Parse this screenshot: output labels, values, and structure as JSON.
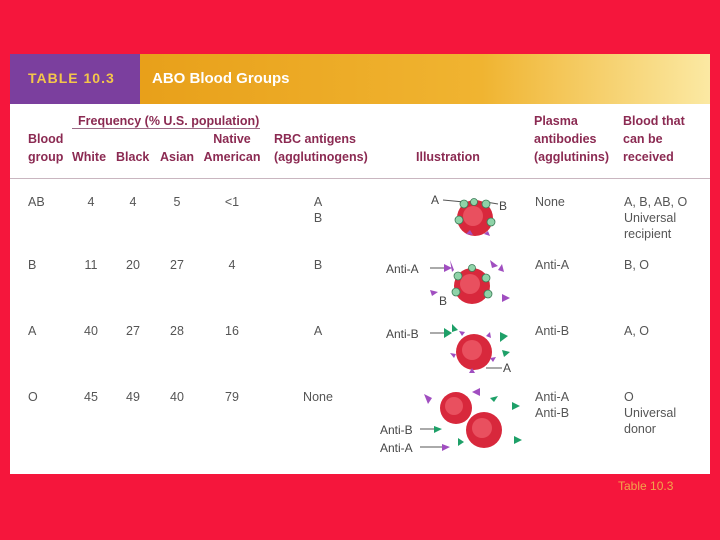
{
  "table": {
    "label": "TABLE 10.3",
    "title": "ABO Blood Groups",
    "headers": {
      "blood_group": [
        "Blood",
        "group"
      ],
      "frequency": "Frequency (% U.S. population)",
      "white": "White",
      "black": "Black",
      "asian": "Asian",
      "native_american": [
        "Native",
        "American"
      ],
      "rbc_antigens": [
        "RBC antigens",
        "(agglutinogens)"
      ],
      "illustration": "Illustration",
      "plasma_antibodies": [
        "Plasma",
        "antibodies",
        "(agglutinins)"
      ],
      "blood_received": [
        "Blood that",
        "can be",
        "received"
      ]
    },
    "rows": [
      {
        "group": "AB",
        "white": "4",
        "black": "4",
        "asian": "5",
        "native": "<1",
        "antigens": [
          "A",
          "B"
        ],
        "antibodies": [
          "None"
        ],
        "received": [
          "A, B, AB, O",
          "Universal",
          "recipient"
        ],
        "illustration_labels": {
          "a": "A",
          "b": "B"
        }
      },
      {
        "group": "B",
        "white": "11",
        "black": "20",
        "asian": "27",
        "native": "4",
        "antigens": [
          "B"
        ],
        "antibodies": [
          "Anti-A"
        ],
        "received": [
          "B, O"
        ],
        "illustration_labels": {
          "anti": "Anti-A",
          "antigen": "B"
        }
      },
      {
        "group": "A",
        "white": "40",
        "black": "27",
        "asian": "28",
        "native": "16",
        "antigens": [
          "A"
        ],
        "antibodies": [
          "Anti-B"
        ],
        "received": [
          "A, O"
        ],
        "illustration_labels": {
          "anti": "Anti-B",
          "antigen": "A"
        }
      },
      {
        "group": "O",
        "white": "45",
        "black": "49",
        "asian": "40",
        "native": "79",
        "antigens": [
          "None"
        ],
        "antibodies": [
          "Anti-A",
          "Anti-B"
        ],
        "received": [
          "O",
          "Universal",
          "donor"
        ],
        "illustration_labels": {
          "anti_b": "Anti-B",
          "anti_a": "Anti-A"
        }
      }
    ]
  },
  "caption": "Table 10.3",
  "colors": {
    "background": "#f5163c",
    "header_purple": "#7b3f9e",
    "header_gold": "#f0b431",
    "header_text": "#8b2a52",
    "rbc": "#d8283c"
  }
}
